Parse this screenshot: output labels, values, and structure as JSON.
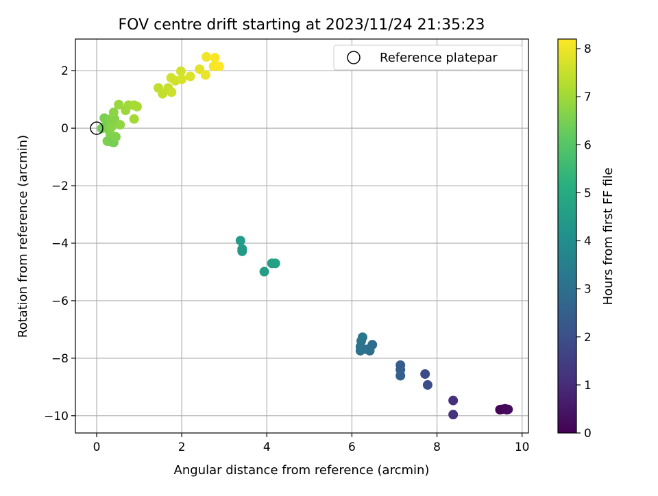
{
  "chart_data": {
    "type": "scatter",
    "title": "FOV centre drift starting at 2023/11/24 21:35:23",
    "xlabel": "Angular distance from reference (arcmin)",
    "ylabel": "Rotation from reference (arcmin)",
    "xlim": [
      -0.5,
      10.15
    ],
    "ylim": [
      -10.6,
      3.1
    ],
    "x_ticks": [
      0,
      2,
      4,
      6,
      8,
      10
    ],
    "x_tick_labels": [
      "0",
      "2",
      "4",
      "6",
      "8",
      "10"
    ],
    "y_ticks": [
      -10,
      -8,
      -6,
      -4,
      -2,
      0,
      2
    ],
    "y_tick_labels": [
      "−10",
      "−8",
      "−6",
      "−4",
      "−2",
      "0",
      "2"
    ],
    "grid": true,
    "legend": {
      "position": "top-right",
      "label": "Reference platepar"
    },
    "reference_point": {
      "x": 0,
      "y": 0
    },
    "colorbar": {
      "label": "Hours from first FF file",
      "range": [
        0,
        8.2
      ],
      "ticks": [
        0,
        1,
        2,
        3,
        4,
        5,
        6,
        7,
        8
      ],
      "tick_labels": [
        "0",
        "1",
        "2",
        "3",
        "4",
        "5",
        "6",
        "7",
        "8"
      ],
      "colormap": "viridis"
    },
    "points": [
      {
        "x": 9.48,
        "y": -9.79,
        "c": 0.05
      },
      {
        "x": 9.52,
        "y": -9.78,
        "c": 0.1
      },
      {
        "x": 9.6,
        "y": -9.76,
        "c": 0.15
      },
      {
        "x": 9.64,
        "y": -9.79,
        "c": 0.2
      },
      {
        "x": 9.67,
        "y": -9.78,
        "c": 0.25
      },
      {
        "x": 8.38,
        "y": -9.47,
        "c": 1.1
      },
      {
        "x": 8.38,
        "y": -9.96,
        "c": 1.2
      },
      {
        "x": 7.72,
        "y": -8.55,
        "c": 1.85
      },
      {
        "x": 7.78,
        "y": -8.93,
        "c": 1.95
      },
      {
        "x": 7.14,
        "y": -8.24,
        "c": 2.4
      },
      {
        "x": 7.14,
        "y": -8.4,
        "c": 2.45
      },
      {
        "x": 7.14,
        "y": -8.61,
        "c": 2.5
      },
      {
        "x": 6.48,
        "y": -7.53,
        "c": 2.9
      },
      {
        "x": 6.42,
        "y": -7.74,
        "c": 2.95
      },
      {
        "x": 6.35,
        "y": -7.69,
        "c": 3.0
      },
      {
        "x": 6.2,
        "y": -7.74,
        "c": 3.05
      },
      {
        "x": 6.2,
        "y": -7.6,
        "c": 3.1
      },
      {
        "x": 6.22,
        "y": -7.4,
        "c": 3.15
      },
      {
        "x": 6.25,
        "y": -7.27,
        "c": 3.2
      },
      {
        "x": 3.38,
        "y": -3.91,
        "c": 4.5
      },
      {
        "x": 3.42,
        "y": -4.2,
        "c": 4.45
      },
      {
        "x": 3.42,
        "y": -4.28,
        "c": 4.4
      },
      {
        "x": 3.94,
        "y": -4.99,
        "c": 4.55
      },
      {
        "x": 4.12,
        "y": -4.7,
        "c": 4.6
      },
      {
        "x": 4.2,
        "y": -4.7,
        "c": 4.65
      },
      {
        "x": 0.12,
        "y": -0.01,
        "c": 6.4
      },
      {
        "x": 0.22,
        "y": 0.1,
        "c": 6.45
      },
      {
        "x": 0.18,
        "y": 0.35,
        "c": 6.5
      },
      {
        "x": 0.28,
        "y": -0.05,
        "c": 6.55
      },
      {
        "x": 0.32,
        "y": -0.2,
        "c": 6.6
      },
      {
        "x": 0.25,
        "y": -0.45,
        "c": 6.55
      },
      {
        "x": 0.36,
        "y": -0.48,
        "c": 6.5
      },
      {
        "x": 0.4,
        "y": -0.5,
        "c": 6.45
      },
      {
        "x": 0.3,
        "y": 0.3,
        "c": 6.6
      },
      {
        "x": 0.42,
        "y": 0.32,
        "c": 6.65
      },
      {
        "x": 0.45,
        "y": -0.3,
        "c": 6.6
      },
      {
        "x": 0.35,
        "y": 0.05,
        "c": 6.7
      },
      {
        "x": 0.4,
        "y": 0.55,
        "c": 6.75
      },
      {
        "x": 0.55,
        "y": 0.12,
        "c": 6.8
      },
      {
        "x": 0.52,
        "y": 0.82,
        "c": 6.9
      },
      {
        "x": 0.68,
        "y": 0.62,
        "c": 6.95
      },
      {
        "x": 0.75,
        "y": 0.8,
        "c": 7.0
      },
      {
        "x": 0.88,
        "y": 0.32,
        "c": 7.05
      },
      {
        "x": 0.88,
        "y": 0.8,
        "c": 7.1
      },
      {
        "x": 0.95,
        "y": 0.75,
        "c": 7.1
      },
      {
        "x": 1.45,
        "y": 1.4,
        "c": 7.4
      },
      {
        "x": 1.55,
        "y": 1.2,
        "c": 7.45
      },
      {
        "x": 1.68,
        "y": 1.4,
        "c": 7.5
      },
      {
        "x": 1.76,
        "y": 1.25,
        "c": 7.55
      },
      {
        "x": 1.75,
        "y": 1.75,
        "c": 7.6
      },
      {
        "x": 1.85,
        "y": 1.65,
        "c": 7.6
      },
      {
        "x": 1.98,
        "y": 1.98,
        "c": 7.65
      },
      {
        "x": 2.0,
        "y": 1.7,
        "c": 7.7
      },
      {
        "x": 2.2,
        "y": 1.8,
        "c": 7.75
      },
      {
        "x": 2.42,
        "y": 2.05,
        "c": 7.85
      },
      {
        "x": 2.56,
        "y": 1.85,
        "c": 7.95
      },
      {
        "x": 2.58,
        "y": 2.48,
        "c": 8.05
      },
      {
        "x": 2.75,
        "y": 2.15,
        "c": 8.1
      },
      {
        "x": 2.78,
        "y": 2.45,
        "c": 8.15
      },
      {
        "x": 2.88,
        "y": 2.15,
        "c": 8.2
      }
    ]
  }
}
